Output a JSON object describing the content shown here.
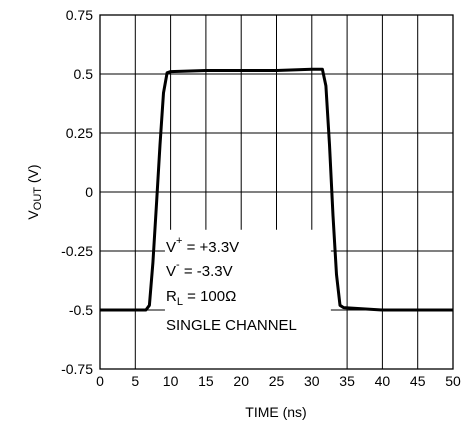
{
  "chart_data": {
    "type": "line",
    "title": "",
    "xlabel": "TIME (ns)",
    "ylabel_main": "V",
    "ylabel_sub": "OUT",
    "ylabel_unit": " (V)",
    "xlim": [
      0,
      50
    ],
    "ylim": [
      -0.75,
      0.75
    ],
    "x_ticks": [
      0,
      5,
      10,
      15,
      20,
      25,
      30,
      35,
      40,
      45,
      50
    ],
    "x_tick_labels": [
      "0",
      "5",
      "10",
      "15",
      "20",
      "25",
      "30",
      "35",
      "40",
      "45",
      "50"
    ],
    "y_ticks": [
      0.75,
      0.5,
      0.25,
      0,
      -0.25,
      -0.5,
      -0.75
    ],
    "y_tick_labels": [
      "0.75",
      "0.5",
      "0.25",
      "0",
      "-0.25",
      "-0.5",
      "-0.75"
    ],
    "grid": true,
    "series": [
      {
        "x": [
          0,
          6.5,
          7.0,
          7.5,
          8.0,
          8.5,
          9.0,
          9.5,
          10.0,
          15,
          20,
          25,
          30,
          31.5,
          32.0,
          32.5,
          33.0,
          33.5,
          34.0,
          34.5,
          40,
          45,
          50
        ],
        "y": [
          -0.5,
          -0.5,
          -0.48,
          -0.3,
          -0.05,
          0.2,
          0.42,
          0.505,
          0.51,
          0.515,
          0.515,
          0.515,
          0.52,
          0.52,
          0.45,
          0.2,
          -0.1,
          -0.35,
          -0.48,
          -0.49,
          -0.5,
          -0.5,
          -0.5
        ]
      }
    ],
    "annotations": {
      "vplus_main": "V",
      "vplus_sup": "+",
      "vplus_value": " = +3.3V",
      "vminus_main": "V",
      "vminus_sup": "-",
      "vminus_value": " = -3.3V",
      "rl_main": "R",
      "rl_sub": "L",
      "rl_value": " = 100Ω",
      "mode": "SINGLE CHANNEL"
    }
  }
}
